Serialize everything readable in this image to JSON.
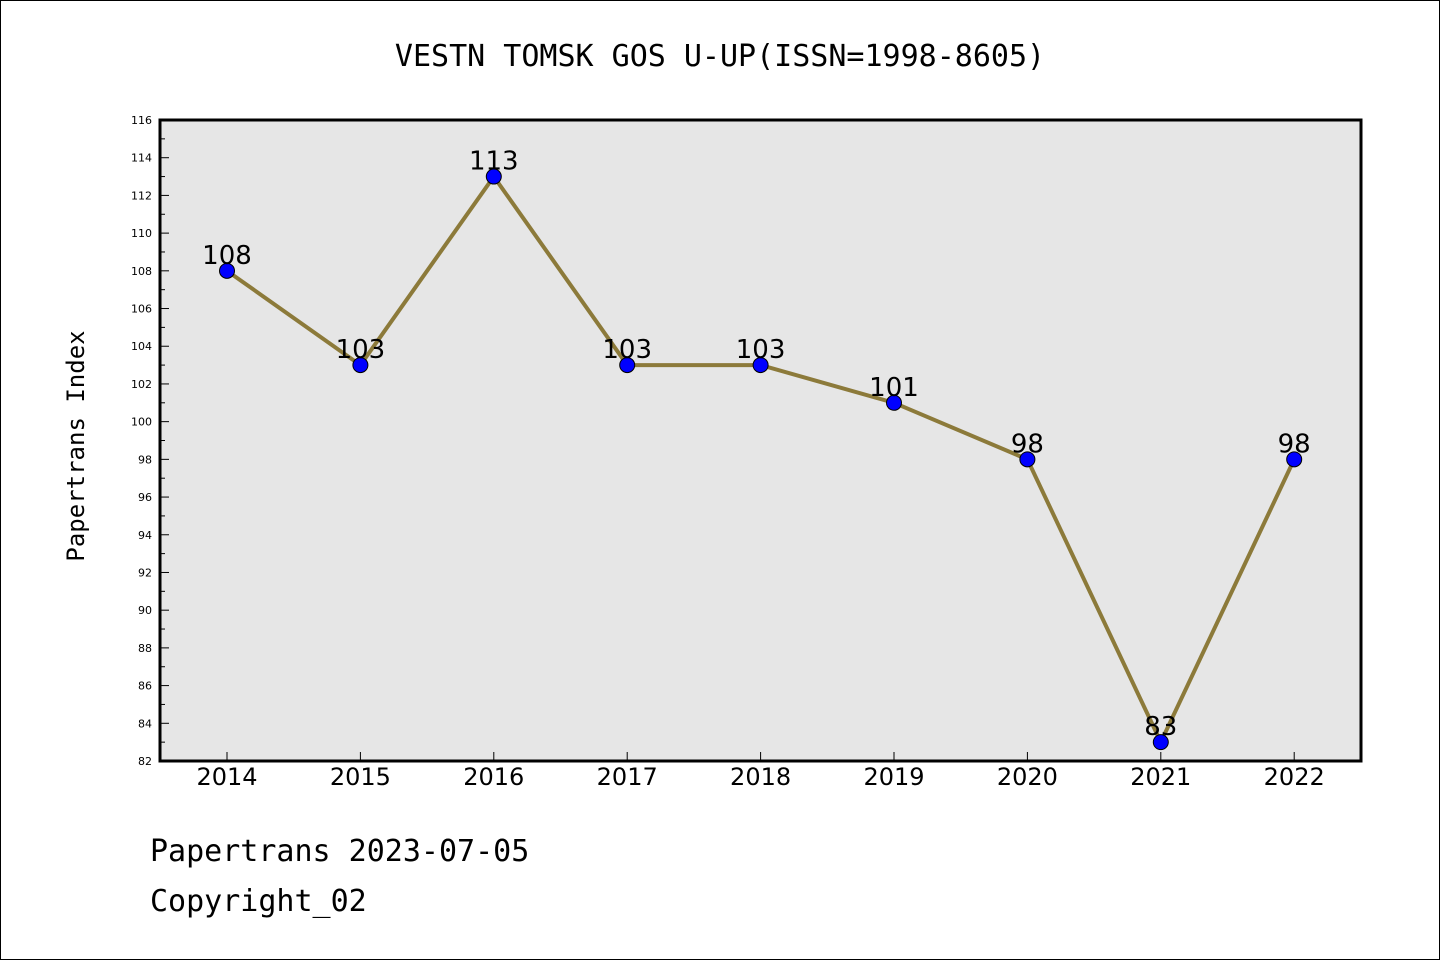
{
  "chart_data": {
    "type": "line",
    "title": "VESTN TOMSK GOS U-UP(ISSN=1998-8605)",
    "xlabel": "",
    "ylabel": "Papertrans Index",
    "categories": [
      "2014",
      "2015",
      "2016",
      "2017",
      "2018",
      "2019",
      "2020",
      "2021",
      "2022"
    ],
    "series": [
      {
        "values": [
          108,
          103,
          113,
          103,
          103,
          101,
          98,
          83,
          98
        ]
      }
    ],
    "data_labels": [
      "108",
      "103",
      "113",
      "103",
      "103",
      "101",
      "98",
      "83",
      "98"
    ],
    "ylim": [
      82,
      116
    ],
    "yticks": [
      "82",
      "84",
      "86",
      "88",
      "90",
      "92",
      "94",
      "96",
      "98",
      "100",
      "102",
      "104",
      "106",
      "108",
      "110",
      "112",
      "114",
      "116"
    ],
    "grid": false,
    "legend": "none",
    "colors": {
      "plot_background": "#e6e6e6",
      "line": "#8c7a3a",
      "marker": "#0000ff",
      "marker_edge": "#000000"
    }
  },
  "footer": {
    "date_line": "Papertrans 2023-07-05",
    "copyright_line": "Copyright_02"
  }
}
